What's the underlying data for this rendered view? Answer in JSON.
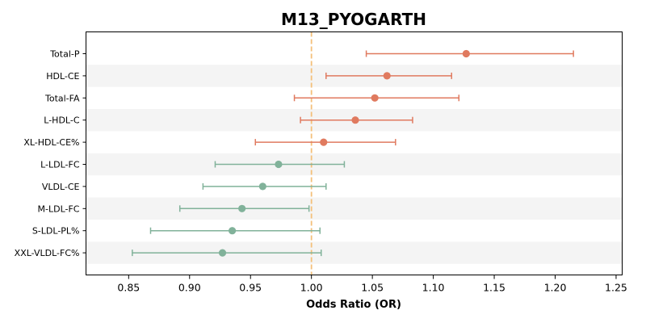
{
  "chart_data": {
    "type": "forest",
    "title": "M13_PYOGARTH",
    "xlabel": "Odds Ratio (OR)",
    "ylabel": "",
    "xlim": [
      0.815,
      1.255
    ],
    "xticks": [
      "0.85",
      "0.90",
      "0.95",
      "1.00",
      "1.05",
      "1.10",
      "1.15",
      "1.20",
      "1.25"
    ],
    "reference_line": 1.0,
    "grid": false,
    "colors": {
      "positive": "#e07a5f",
      "negative": "#81b29a",
      "reference": "#f4c07a",
      "band": "#f4f4f4"
    },
    "items": [
      {
        "label": "Total-P",
        "or": 1.127,
        "lower": 1.045,
        "upper": 1.215
      },
      {
        "label": "HDL-CE",
        "or": 1.062,
        "lower": 1.012,
        "upper": 1.115
      },
      {
        "label": "Total-FA",
        "or": 1.052,
        "lower": 0.986,
        "upper": 1.121
      },
      {
        "label": "L-HDL-C",
        "or": 1.036,
        "lower": 0.991,
        "upper": 1.083
      },
      {
        "label": "XL-HDL-CE%",
        "or": 1.01,
        "lower": 0.954,
        "upper": 1.069
      },
      {
        "label": "L-LDL-FC",
        "or": 0.973,
        "lower": 0.921,
        "upper": 1.027
      },
      {
        "label": "VLDL-CE",
        "or": 0.96,
        "lower": 0.911,
        "upper": 1.012
      },
      {
        "label": "M-LDL-FC",
        "or": 0.943,
        "lower": 0.892,
        "upper": 0.998
      },
      {
        "label": "S-LDL-PL%",
        "or": 0.935,
        "lower": 0.868,
        "upper": 1.007
      },
      {
        "label": "XXL-VLDL-FC%",
        "or": 0.927,
        "lower": 0.853,
        "upper": 1.008
      }
    ]
  }
}
